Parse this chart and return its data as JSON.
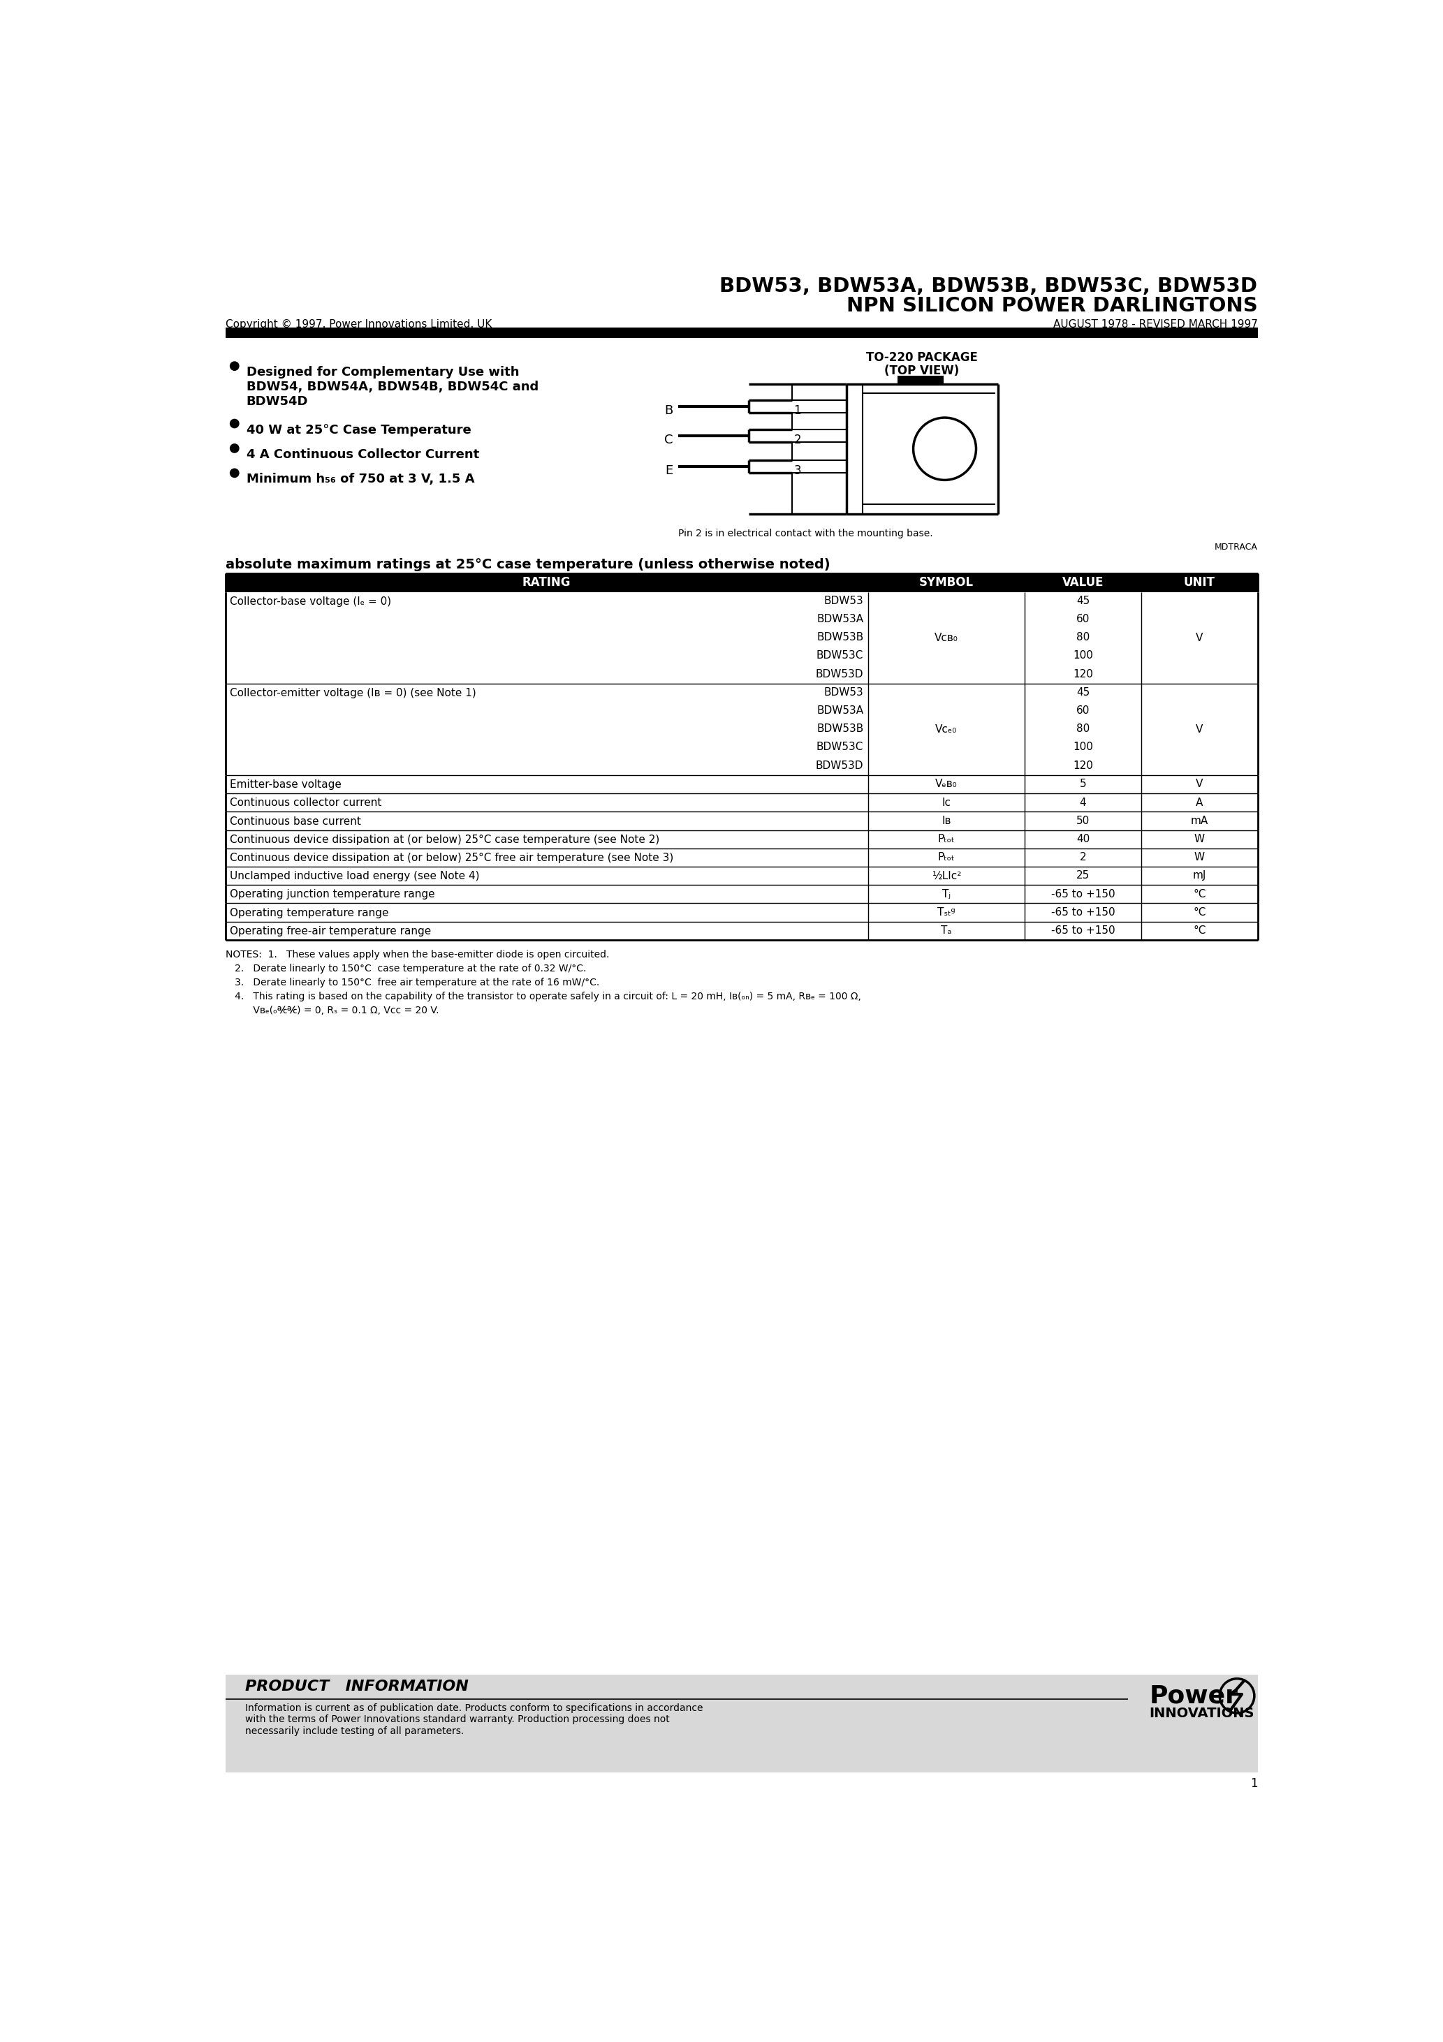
{
  "title_line1": "BDW53, BDW53A, BDW53B, BDW53C, BDW53D",
  "title_line2": "NPN SILICON POWER DARLINGTONS",
  "copyright": "Copyright © 1997, Power Innovations Limited, UK",
  "date_revised": "AUGUST 1978 - REVISED MARCH 1997",
  "package_title": "TO-220 PACKAGE",
  "package_subtitle": "(TOP VIEW)",
  "pin_note": "Pin 2 is in electrical contact with the mounting base.",
  "pin_code": "MDTRACA",
  "table_section_title": "absolute maximum ratings at 25°C case temperature (unless otherwise noted)",
  "footer_title": "PRODUCT   INFORMATION",
  "footer_text": "Information is current as of publication date. Products conform to specifications in accordance\nwith the terms of Power Innovations standard warranty. Production processing does not\nnecessarily include testing of all parameters.",
  "page_number": "1",
  "bg_color": "#ffffff"
}
